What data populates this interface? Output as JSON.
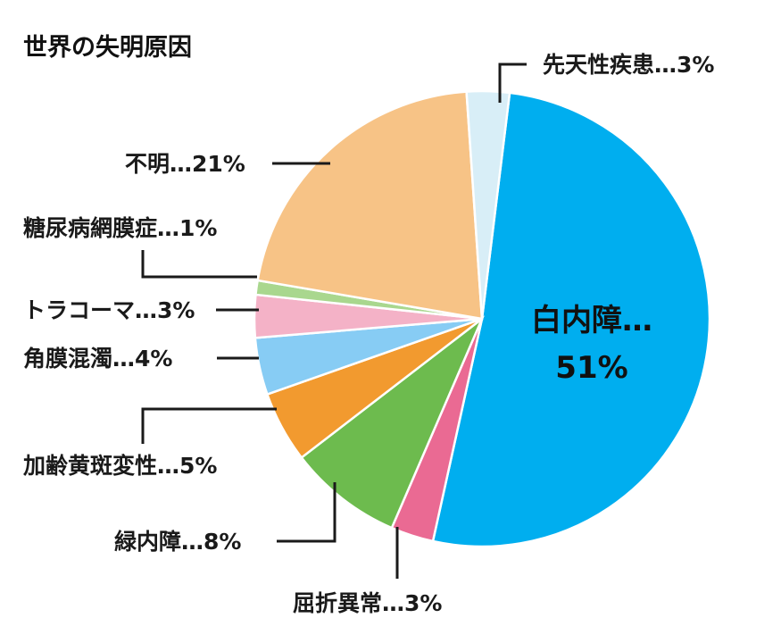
{
  "chart_data": {
    "type": "pie",
    "title": "世界の失明原因",
    "slices": [
      {
        "label": "白内障",
        "value": 51,
        "text": "白内障…",
        "text2": "51%",
        "color": "#00aeef"
      },
      {
        "label": "屈折異常",
        "value": 3,
        "text": "屈折異常…3%",
        "color": "#ea6a93"
      },
      {
        "label": "緑内障",
        "value": 8,
        "text": "緑内障…8%",
        "color": "#6dbb4e"
      },
      {
        "label": "加齢黄斑変性",
        "value": 5,
        "text": "加齢黄斑変性…5%",
        "color": "#f29a2f"
      },
      {
        "label": "角膜混濁",
        "value": 4,
        "text": "角膜混濁…4%",
        "color": "#87ccf4"
      },
      {
        "label": "トラコーマ",
        "value": 3,
        "text": "トラコーマ…3%",
        "color": "#f4b2c7"
      },
      {
        "label": "糖尿病網膜症",
        "value": 1,
        "text": "糖尿病網膜症…1%",
        "color": "#a9d78e"
      },
      {
        "label": "不明",
        "value": 21,
        "text": "不明…21%",
        "color": "#f7c386"
      },
      {
        "label": "先天性疾患",
        "value": 3,
        "text": "先天性疾患…3%",
        "color": "#d8eef7"
      }
    ]
  }
}
